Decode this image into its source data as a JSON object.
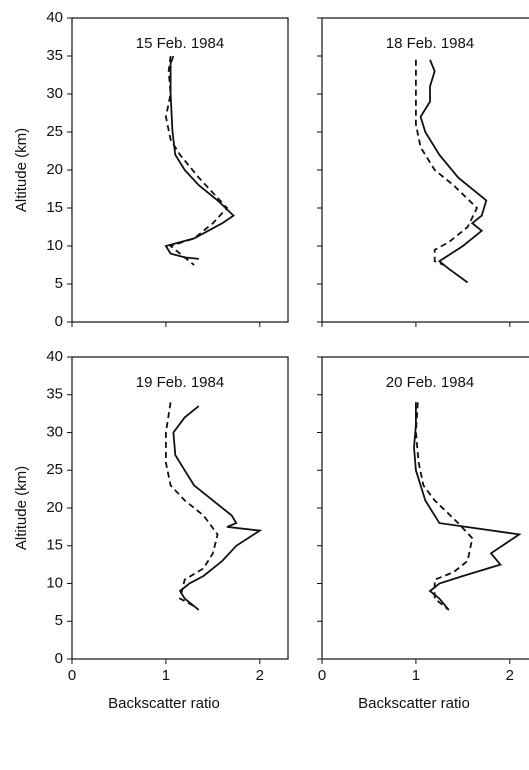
{
  "chart_data": [
    {
      "type": "line",
      "title": "15 Feb. 1984",
      "ylabel": "Altitude (km)",
      "xlim": [
        0,
        2.3
      ],
      "xticks": [
        0,
        1,
        2
      ],
      "ylim": [
        0,
        40
      ],
      "yticks": [
        0,
        5,
        10,
        15,
        20,
        25,
        30,
        35,
        40
      ],
      "series": [
        {
          "color": "#111111",
          "dash": false,
          "x": [
            1.08,
            1.05,
            1.05,
            1.07,
            1.1,
            1.2,
            1.35,
            1.55,
            1.72,
            1.6,
            1.45,
            1.3,
            1.0,
            1.05,
            1.2,
            1.35
          ],
          "values": [
            35,
            34,
            30,
            25,
            22,
            20,
            18,
            16,
            14,
            13,
            12,
            11,
            10,
            9,
            8.5,
            8.3
          ]
        },
        {
          "color": "#111111",
          "dash": true,
          "x": [
            1.05,
            1.03,
            1.05,
            1.0,
            1.05,
            1.15,
            1.35,
            1.5,
            1.65,
            1.5,
            1.3,
            1.05,
            1.15,
            1.3
          ],
          "values": [
            35,
            33,
            30,
            27,
            24,
            22,
            19,
            17,
            15,
            13,
            11,
            10,
            9,
            7.5
          ]
        }
      ]
    },
    {
      "type": "line",
      "title": "18 Feb. 1984",
      "xlim": [
        0,
        2.3
      ],
      "xticks": [
        0,
        1,
        2
      ],
      "ylim": [
        0,
        40
      ],
      "yticks": [
        0,
        5,
        10,
        15,
        20,
        25,
        30,
        35,
        40
      ],
      "series": [
        {
          "color": "#111111",
          "dash": false,
          "x": [
            1.15,
            1.2,
            1.15,
            1.15,
            1.05,
            1.1,
            1.25,
            1.45,
            1.75,
            1.7,
            1.6,
            1.7,
            1.5,
            1.25,
            1.35,
            1.55
          ],
          "values": [
            34.5,
            33,
            31,
            29,
            27,
            25,
            22,
            19,
            16,
            14,
            13,
            12,
            10,
            8,
            7,
            5.2
          ]
        },
        {
          "color": "#111111",
          "dash": true,
          "x": [
            1.0,
            1.0,
            1.0,
            1.05,
            1.2,
            1.4,
            1.65,
            1.55,
            1.35,
            1.2,
            1.2,
            1.3
          ],
          "values": [
            34.5,
            30,
            26,
            23,
            20,
            18,
            15,
            12.5,
            10.5,
            9.5,
            8,
            7.5
          ]
        }
      ]
    },
    {
      "type": "line",
      "title": "19 Feb. 1984",
      "ylabel": "Altitude (km)",
      "xlabel": "Backscatter ratio",
      "xlim": [
        0,
        2.3
      ],
      "xticks": [
        0,
        1,
        2
      ],
      "ylim": [
        0,
        40
      ],
      "yticks": [
        0,
        5,
        10,
        15,
        20,
        25,
        30,
        35,
        40
      ],
      "series": [
        {
          "color": "#111111",
          "dash": false,
          "x": [
            1.35,
            1.2,
            1.08,
            1.1,
            1.2,
            1.3,
            1.5,
            1.7,
            1.75,
            1.65,
            2.0,
            1.75,
            1.6,
            1.4,
            1.25,
            1.15,
            1.2,
            1.35
          ],
          "values": [
            33.5,
            32,
            30,
            27,
            25,
            23,
            21,
            19,
            18,
            17.5,
            17,
            15,
            13,
            11,
            10,
            9,
            8,
            6.5
          ]
        },
        {
          "color": "#111111",
          "dash": true,
          "x": [
            1.05,
            1.0,
            1.0,
            1.05,
            1.2,
            1.4,
            1.55,
            1.5,
            1.4,
            1.2,
            1.15,
            1.3
          ],
          "values": [
            34,
            30,
            26,
            23,
            21,
            19,
            16.5,
            14,
            12,
            10.5,
            8,
            7
          ]
        }
      ]
    },
    {
      "type": "line",
      "title": "20 Feb. 1984",
      "xlabel": "Backscatter ratio",
      "xlim": [
        0,
        2.3
      ],
      "xticks": [
        0,
        1,
        2
      ],
      "ylim": [
        0,
        40
      ],
      "yticks": [
        0,
        5,
        10,
        15,
        20,
        25,
        30,
        35,
        40
      ],
      "series": [
        {
          "color": "#111111",
          "dash": false,
          "x": [
            1.0,
            1.0,
            0.98,
            1.0,
            1.05,
            1.1,
            1.25,
            2.1,
            1.8,
            1.9,
            1.5,
            1.25,
            1.15,
            1.25,
            1.35
          ],
          "values": [
            34,
            31,
            28,
            25,
            23,
            21,
            18,
            16.5,
            14,
            12.5,
            11,
            10,
            9,
            8,
            6.5
          ]
        },
        {
          "color": "#111111",
          "dash": true,
          "x": [
            1.02,
            1.0,
            1.03,
            1.08,
            1.2,
            1.45,
            1.6,
            1.55,
            1.4,
            1.2,
            1.2,
            1.35
          ],
          "values": [
            34,
            30,
            26,
            23,
            21,
            18,
            16,
            13,
            11.5,
            10.5,
            8,
            6.5
          ]
        }
      ]
    }
  ]
}
